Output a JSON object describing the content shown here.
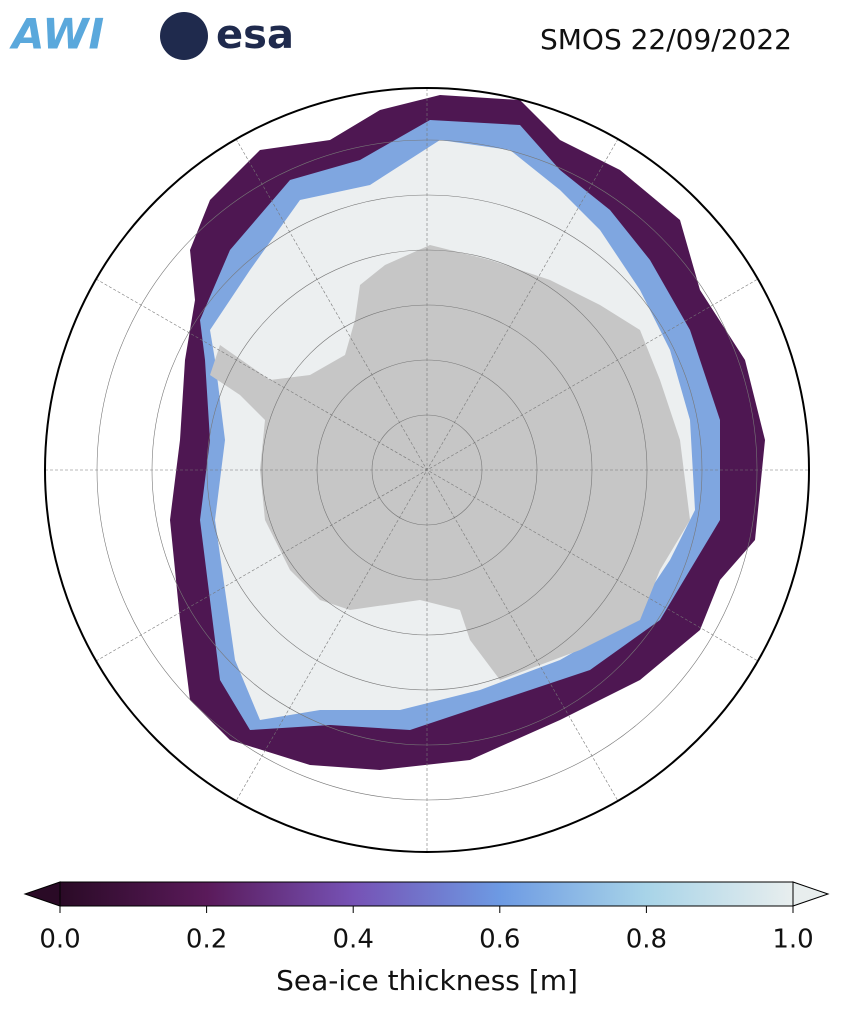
{
  "header": {
    "logos": [
      "AWI",
      "esa"
    ],
    "title": "SMOS 22/09/2022"
  },
  "colorbar": {
    "label": "Sea-ice thickness [m]",
    "lim": [
      0,
      1
    ],
    "ticks": [
      {
        "value": 0,
        "label": "0.0"
      },
      {
        "value": 0.2,
        "label": "0.2"
      },
      {
        "value": 0.4,
        "label": "0.4"
      },
      {
        "value": 0.6,
        "label": "0.6"
      },
      {
        "value": 0.8,
        "label": "0.8"
      },
      {
        "value": 1,
        "label": "1.0"
      }
    ],
    "colors": [
      "#2a0a26",
      "#5a1a5a",
      "#7652b5",
      "#6d9ae3",
      "#a8d4e8",
      "#e8eeee"
    ]
  }
}
